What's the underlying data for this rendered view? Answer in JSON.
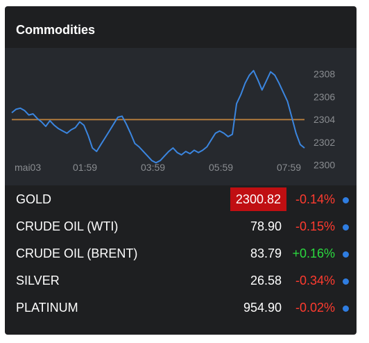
{
  "widget": {
    "title": "Commodities",
    "accent_negative": "#ff3b2f",
    "accent_positive": "#2bd93f",
    "highlight_color": "#c00f12",
    "dot_icon": "status-dot-icon"
  },
  "chart_data": {
    "type": "line",
    "title": "",
    "xlabel": "",
    "ylabel": "",
    "x_tick_labels": [
      "mai03",
      "01:59",
      "03:59",
      "05:59",
      "07:59"
    ],
    "y_tick_labels": [
      "2300",
      "2302",
      "2304",
      "2306",
      "2308"
    ],
    "ylim": [
      2299.8,
      2309.2
    ],
    "reference_line": {
      "value": 2304.0,
      "color": "#b07a3c"
    },
    "grid": false,
    "series": [
      {
        "color": "#3b86e0",
        "values": [
          2304.6,
          2304.9,
          2305.0,
          2304.8,
          2304.4,
          2304.5,
          2304.1,
          2303.8,
          2303.4,
          2303.9,
          2303.5,
          2303.2,
          2303.0,
          2302.8,
          2303.1,
          2303.3,
          2303.8,
          2303.5,
          2302.6,
          2301.5,
          2301.2,
          2301.8,
          2302.4,
          2303.0,
          2303.6,
          2304.2,
          2304.3,
          2303.6,
          2302.8,
          2301.9,
          2301.6,
          2301.2,
          2300.8,
          2300.4,
          2300.2,
          2300.4,
          2300.8,
          2301.2,
          2301.5,
          2301.1,
          2300.9,
          2301.2,
          2301.0,
          2301.3,
          2301.1,
          2301.3,
          2301.6,
          2302.2,
          2302.8,
          2303.0,
          2302.8,
          2302.5,
          2302.7,
          2305.4,
          2306.2,
          2307.2,
          2307.9,
          2308.3,
          2307.5,
          2306.6,
          2307.4,
          2308.2,
          2307.9,
          2307.2,
          2306.4,
          2305.6,
          2304.2,
          2302.8,
          2301.8,
          2301.5
        ]
      }
    ]
  },
  "rows": [
    {
      "name": "GOLD",
      "price": "2300.82",
      "change": "-0.14%",
      "direction": "negative",
      "highlighted": true
    },
    {
      "name": "CRUDE OIL (WTI)",
      "price": "78.90",
      "change": "-0.15%",
      "direction": "negative",
      "highlighted": false
    },
    {
      "name": "CRUDE OIL (BRENT)",
      "price": "83.79",
      "change": "+0.16%",
      "direction": "positive",
      "highlighted": false
    },
    {
      "name": "SILVER",
      "price": "26.58",
      "change": "-0.34%",
      "direction": "negative",
      "highlighted": false
    },
    {
      "name": "PLATINUM",
      "price": "954.90",
      "change": "-0.02%",
      "direction": "negative",
      "highlighted": false
    }
  ]
}
